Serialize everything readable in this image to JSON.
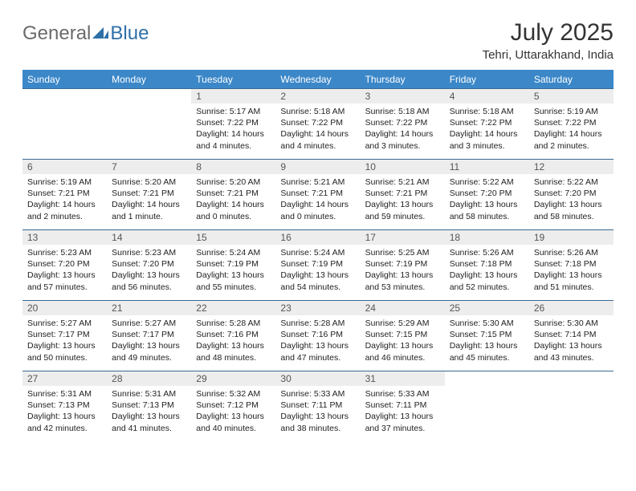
{
  "logo": {
    "general": "General",
    "blue": "Blue"
  },
  "title": "July 2025",
  "location": "Tehri, Uttarakhand, India",
  "colors": {
    "header_bg": "#3b87c8",
    "header_text": "#ffffff",
    "daynum_bg": "#ededed",
    "daynum_text": "#555555",
    "border": "#3b6a93",
    "logo_gray": "#6b6b6b",
    "logo_blue": "#2f6fa8"
  },
  "weekdays": [
    "Sunday",
    "Monday",
    "Tuesday",
    "Wednesday",
    "Thursday",
    "Friday",
    "Saturday"
  ],
  "weeks": [
    [
      {
        "day": "",
        "sunrise": "",
        "sunset": "",
        "daylight": ""
      },
      {
        "day": "",
        "sunrise": "",
        "sunset": "",
        "daylight": ""
      },
      {
        "day": "1",
        "sunrise": "Sunrise: 5:17 AM",
        "sunset": "Sunset: 7:22 PM",
        "daylight": "Daylight: 14 hours and 4 minutes."
      },
      {
        "day": "2",
        "sunrise": "Sunrise: 5:18 AM",
        "sunset": "Sunset: 7:22 PM",
        "daylight": "Daylight: 14 hours and 4 minutes."
      },
      {
        "day": "3",
        "sunrise": "Sunrise: 5:18 AM",
        "sunset": "Sunset: 7:22 PM",
        "daylight": "Daylight: 14 hours and 3 minutes."
      },
      {
        "day": "4",
        "sunrise": "Sunrise: 5:18 AM",
        "sunset": "Sunset: 7:22 PM",
        "daylight": "Daylight: 14 hours and 3 minutes."
      },
      {
        "day": "5",
        "sunrise": "Sunrise: 5:19 AM",
        "sunset": "Sunset: 7:22 PM",
        "daylight": "Daylight: 14 hours and 2 minutes."
      }
    ],
    [
      {
        "day": "6",
        "sunrise": "Sunrise: 5:19 AM",
        "sunset": "Sunset: 7:21 PM",
        "daylight": "Daylight: 14 hours and 2 minutes."
      },
      {
        "day": "7",
        "sunrise": "Sunrise: 5:20 AM",
        "sunset": "Sunset: 7:21 PM",
        "daylight": "Daylight: 14 hours and 1 minute."
      },
      {
        "day": "8",
        "sunrise": "Sunrise: 5:20 AM",
        "sunset": "Sunset: 7:21 PM",
        "daylight": "Daylight: 14 hours and 0 minutes."
      },
      {
        "day": "9",
        "sunrise": "Sunrise: 5:21 AM",
        "sunset": "Sunset: 7:21 PM",
        "daylight": "Daylight: 14 hours and 0 minutes."
      },
      {
        "day": "10",
        "sunrise": "Sunrise: 5:21 AM",
        "sunset": "Sunset: 7:21 PM",
        "daylight": "Daylight: 13 hours and 59 minutes."
      },
      {
        "day": "11",
        "sunrise": "Sunrise: 5:22 AM",
        "sunset": "Sunset: 7:20 PM",
        "daylight": "Daylight: 13 hours and 58 minutes."
      },
      {
        "day": "12",
        "sunrise": "Sunrise: 5:22 AM",
        "sunset": "Sunset: 7:20 PM",
        "daylight": "Daylight: 13 hours and 58 minutes."
      }
    ],
    [
      {
        "day": "13",
        "sunrise": "Sunrise: 5:23 AM",
        "sunset": "Sunset: 7:20 PM",
        "daylight": "Daylight: 13 hours and 57 minutes."
      },
      {
        "day": "14",
        "sunrise": "Sunrise: 5:23 AM",
        "sunset": "Sunset: 7:20 PM",
        "daylight": "Daylight: 13 hours and 56 minutes."
      },
      {
        "day": "15",
        "sunrise": "Sunrise: 5:24 AM",
        "sunset": "Sunset: 7:19 PM",
        "daylight": "Daylight: 13 hours and 55 minutes."
      },
      {
        "day": "16",
        "sunrise": "Sunrise: 5:24 AM",
        "sunset": "Sunset: 7:19 PM",
        "daylight": "Daylight: 13 hours and 54 minutes."
      },
      {
        "day": "17",
        "sunrise": "Sunrise: 5:25 AM",
        "sunset": "Sunset: 7:19 PM",
        "daylight": "Daylight: 13 hours and 53 minutes."
      },
      {
        "day": "18",
        "sunrise": "Sunrise: 5:26 AM",
        "sunset": "Sunset: 7:18 PM",
        "daylight": "Daylight: 13 hours and 52 minutes."
      },
      {
        "day": "19",
        "sunrise": "Sunrise: 5:26 AM",
        "sunset": "Sunset: 7:18 PM",
        "daylight": "Daylight: 13 hours and 51 minutes."
      }
    ],
    [
      {
        "day": "20",
        "sunrise": "Sunrise: 5:27 AM",
        "sunset": "Sunset: 7:17 PM",
        "daylight": "Daylight: 13 hours and 50 minutes."
      },
      {
        "day": "21",
        "sunrise": "Sunrise: 5:27 AM",
        "sunset": "Sunset: 7:17 PM",
        "daylight": "Daylight: 13 hours and 49 minutes."
      },
      {
        "day": "22",
        "sunrise": "Sunrise: 5:28 AM",
        "sunset": "Sunset: 7:16 PM",
        "daylight": "Daylight: 13 hours and 48 minutes."
      },
      {
        "day": "23",
        "sunrise": "Sunrise: 5:28 AM",
        "sunset": "Sunset: 7:16 PM",
        "daylight": "Daylight: 13 hours and 47 minutes."
      },
      {
        "day": "24",
        "sunrise": "Sunrise: 5:29 AM",
        "sunset": "Sunset: 7:15 PM",
        "daylight": "Daylight: 13 hours and 46 minutes."
      },
      {
        "day": "25",
        "sunrise": "Sunrise: 5:30 AM",
        "sunset": "Sunset: 7:15 PM",
        "daylight": "Daylight: 13 hours and 45 minutes."
      },
      {
        "day": "26",
        "sunrise": "Sunrise: 5:30 AM",
        "sunset": "Sunset: 7:14 PM",
        "daylight": "Daylight: 13 hours and 43 minutes."
      }
    ],
    [
      {
        "day": "27",
        "sunrise": "Sunrise: 5:31 AM",
        "sunset": "Sunset: 7:13 PM",
        "daylight": "Daylight: 13 hours and 42 minutes."
      },
      {
        "day": "28",
        "sunrise": "Sunrise: 5:31 AM",
        "sunset": "Sunset: 7:13 PM",
        "daylight": "Daylight: 13 hours and 41 minutes."
      },
      {
        "day": "29",
        "sunrise": "Sunrise: 5:32 AM",
        "sunset": "Sunset: 7:12 PM",
        "daylight": "Daylight: 13 hours and 40 minutes."
      },
      {
        "day": "30",
        "sunrise": "Sunrise: 5:33 AM",
        "sunset": "Sunset: 7:11 PM",
        "daylight": "Daylight: 13 hours and 38 minutes."
      },
      {
        "day": "31",
        "sunrise": "Sunrise: 5:33 AM",
        "sunset": "Sunset: 7:11 PM",
        "daylight": "Daylight: 13 hours and 37 minutes."
      },
      {
        "day": "",
        "sunrise": "",
        "sunset": "",
        "daylight": ""
      },
      {
        "day": "",
        "sunrise": "",
        "sunset": "",
        "daylight": ""
      }
    ]
  ]
}
